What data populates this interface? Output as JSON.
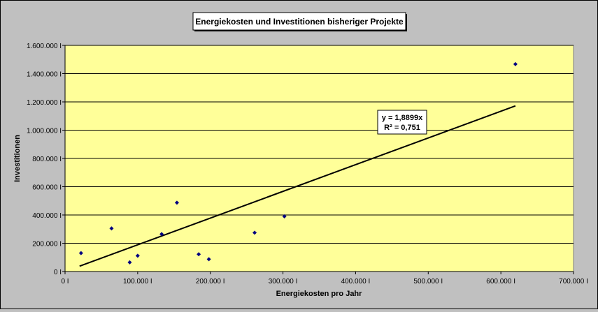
{
  "chart_data": {
    "type": "scatter",
    "title": "Energiekosten und Investitionen bisheriger Projekte",
    "xlabel": "Energiekosten pro Jahr",
    "ylabel": "Investitionen",
    "xlim": [
      0,
      700000
    ],
    "ylim": [
      0,
      1600000
    ],
    "x_ticks": [
      0,
      100000,
      200000,
      300000,
      400000,
      500000,
      600000,
      700000
    ],
    "x_tick_labels": [
      "0 I",
      "100.000 I",
      "200.000 I",
      "300.000 I",
      "400.000 I",
      "500.000 I",
      "600.000 I",
      "700.000 I"
    ],
    "y_ticks": [
      0,
      200000,
      400000,
      600000,
      800000,
      1000000,
      1200000,
      1400000,
      1600000
    ],
    "y_tick_labels": [
      "0 I",
      "200.000 I",
      "400.000 I",
      "600.000 I",
      "800.000 I",
      "1.000.000 I",
      "1.200.000 I",
      "1.400.000 I",
      "1.600.000 I"
    ],
    "grid": "horizontal",
    "plot_background": "#ffff99",
    "chart_background": "#c0c0c0",
    "marker_color": "#000080",
    "series": [
      {
        "points": [
          [
            22000,
            130000
          ],
          [
            64000,
            305000
          ],
          [
            89000,
            65000
          ],
          [
            100000,
            112000
          ],
          [
            133000,
            265000
          ],
          [
            154000,
            487000
          ],
          [
            184000,
            122000
          ],
          [
            198000,
            87000
          ],
          [
            261000,
            275000
          ],
          [
            302000,
            390000
          ],
          [
            620000,
            1467000
          ]
        ]
      }
    ],
    "trendline": {
      "type": "linear",
      "slope": 1.8899,
      "x_range": [
        20000,
        620000
      ],
      "equation_label": "y = 1,8899x",
      "r2_label": "R² = 0,751"
    }
  }
}
